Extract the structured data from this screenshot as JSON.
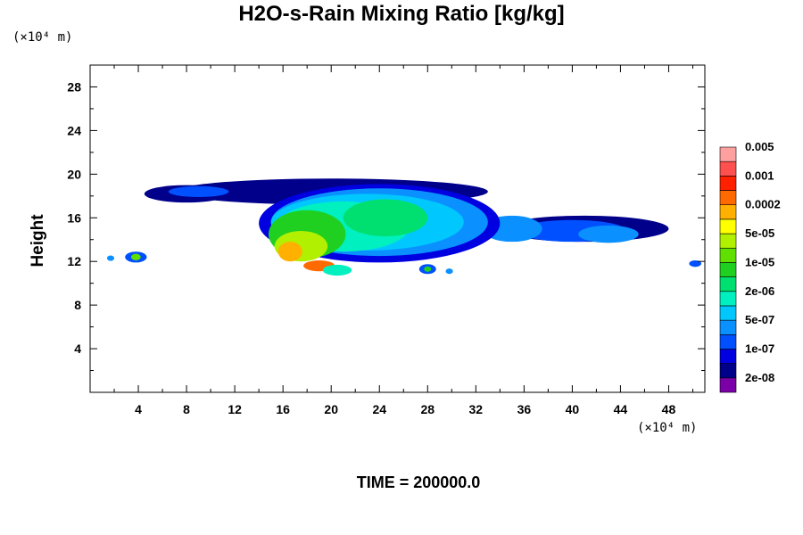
{
  "chart_data": {
    "type": "heatmap",
    "title": "H2O-s-Rain Mixing Ratio [kg/kg]",
    "ylabel": "Height",
    "xlabel": "",
    "x_unit": "(×10⁴ m)",
    "y_unit": "(×10⁴ m)",
    "footer": "TIME = 200000.0",
    "xlim": [
      0,
      51
    ],
    "ylim": [
      0,
      30
    ],
    "x_ticks": [
      4,
      8,
      12,
      16,
      20,
      24,
      28,
      32,
      36,
      40,
      44,
      48
    ],
    "y_ticks": [
      4,
      8,
      12,
      16,
      20,
      24,
      28
    ],
    "colorbar": {
      "colors": [
        "#7b00a8",
        "#00008b",
        "#0000e0",
        "#0050ff",
        "#0a90ff",
        "#00c8ff",
        "#00f0c0",
        "#00e070",
        "#20d020",
        "#60e000",
        "#b0f000",
        "#ffff00",
        "#ffb000",
        "#ff6a00",
        "#ff2000",
        "#ff5050",
        "#ffa0a0"
      ],
      "labels": [
        "2e-08",
        "1e-07",
        "5e-07",
        "2e-06",
        "1e-05",
        "5e-05",
        "0.0002",
        "0.001",
        "0.005"
      ]
    },
    "blobs": [
      {
        "cx": 20,
        "cy": 18.4,
        "rx": 13,
        "ry": 1.2,
        "level": 1
      },
      {
        "cx": 8,
        "cy": 18.2,
        "rx": 3.5,
        "ry": 0.8,
        "level": 1
      },
      {
        "cx": 9,
        "cy": 18.4,
        "rx": 2.5,
        "ry": 0.5,
        "level": 3
      },
      {
        "cx": 41,
        "cy": 15,
        "rx": 7,
        "ry": 1.2,
        "level": 1
      },
      {
        "cx": 40,
        "cy": 14.8,
        "rx": 4.5,
        "ry": 1.0,
        "level": 3
      },
      {
        "cx": 35,
        "cy": 15,
        "rx": 2.5,
        "ry": 1.2,
        "level": 4
      },
      {
        "cx": 43,
        "cy": 14.5,
        "rx": 2.5,
        "ry": 0.8,
        "level": 4
      },
      {
        "cx": 24,
        "cy": 15.5,
        "rx": 10,
        "ry": 3.6,
        "level": 2
      },
      {
        "cx": 24,
        "cy": 15.6,
        "rx": 9,
        "ry": 3.1,
        "level": 4
      },
      {
        "cx": 23,
        "cy": 15.6,
        "rx": 8,
        "ry": 2.6,
        "level": 5
      },
      {
        "cx": 21,
        "cy": 15.2,
        "rx": 5.5,
        "ry": 2.3,
        "level": 6
      },
      {
        "cx": 18,
        "cy": 14.5,
        "rx": 3.2,
        "ry": 2.2,
        "level": 8
      },
      {
        "cx": 24.5,
        "cy": 16,
        "rx": 3.5,
        "ry": 1.7,
        "level": 7
      },
      {
        "cx": 17.5,
        "cy": 13.4,
        "rx": 2.2,
        "ry": 1.4,
        "level": 10
      },
      {
        "cx": 16.6,
        "cy": 12.9,
        "rx": 1.0,
        "ry": 0.9,
        "level": 12
      },
      {
        "cx": 19,
        "cy": 11.6,
        "rx": 1.3,
        "ry": 0.5,
        "level": 13
      },
      {
        "cx": 20.5,
        "cy": 11.2,
        "rx": 1.2,
        "ry": 0.5,
        "level": 6
      },
      {
        "cx": 3.8,
        "cy": 12.4,
        "rx": 0.9,
        "ry": 0.5,
        "level": 3
      },
      {
        "cx": 3.8,
        "cy": 12.4,
        "rx": 0.4,
        "ry": 0.3,
        "level": 9
      },
      {
        "cx": 1.7,
        "cy": 12.3,
        "rx": 0.3,
        "ry": 0.25,
        "level": 4
      },
      {
        "cx": 28,
        "cy": 11.3,
        "rx": 0.7,
        "ry": 0.45,
        "level": 3
      },
      {
        "cx": 28,
        "cy": 11.3,
        "rx": 0.3,
        "ry": 0.25,
        "level": 8
      },
      {
        "cx": 29.8,
        "cy": 11.1,
        "rx": 0.3,
        "ry": 0.25,
        "level": 4
      },
      {
        "cx": 50.2,
        "cy": 11.8,
        "rx": 0.5,
        "ry": 0.3,
        "level": 3
      }
    ]
  }
}
